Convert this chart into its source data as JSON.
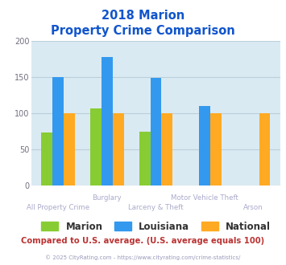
{
  "title_line1": "2018 Marion",
  "title_line2": "Property Crime Comparison",
  "series": {
    "Marion": [
      73,
      107,
      75,
      0,
      0
    ],
    "Louisiana": [
      150,
      178,
      149,
      110,
      0
    ],
    "National": [
      100,
      100,
      100,
      100,
      100
    ]
  },
  "n_groups": 5,
  "colors": {
    "Marion": "#88cc33",
    "Louisiana": "#3399ee",
    "National": "#ffaa22"
  },
  "ylim": [
    0,
    200
  ],
  "yticks": [
    0,
    50,
    100,
    150,
    200
  ],
  "background_color": "#daeaf2",
  "title_color": "#1155cc",
  "xlabel_color": "#aaaacc",
  "footer_text": "Compared to U.S. average. (U.S. average equals 100)",
  "footer_color": "#bb3333",
  "credit_text": "© 2025 CityRating.com - https://www.cityrating.com/crime-statistics/",
  "credit_color": "#9999bb",
  "grid_color": "#bbd0dd",
  "legend_labels": [
    "Marion",
    "Louisiana",
    "National"
  ],
  "top_xlabels": [
    [
      1,
      "Burglary"
    ],
    [
      3,
      "Motor Vehicle Theft"
    ]
  ],
  "bot_xlabels": [
    [
      0,
      "All Property Crime"
    ],
    [
      2,
      "Larceny & Theft"
    ],
    [
      4,
      "Arson"
    ]
  ]
}
